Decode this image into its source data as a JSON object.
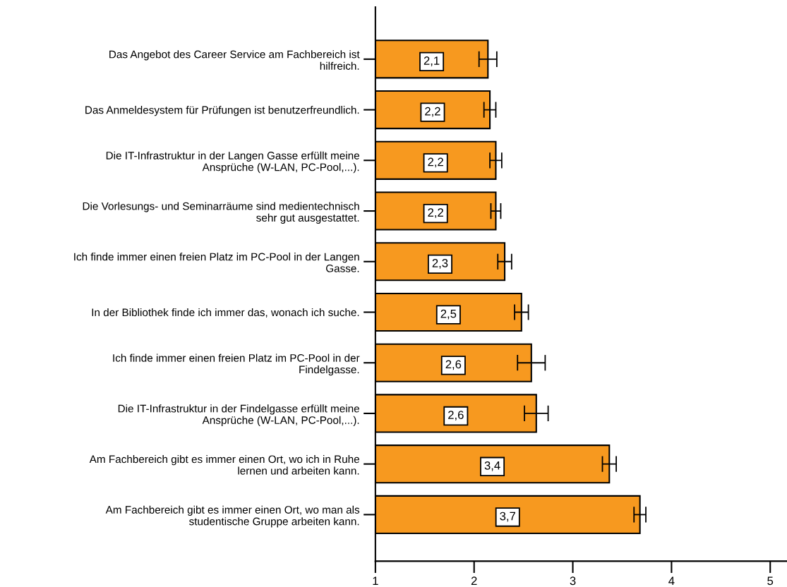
{
  "chart_data": {
    "type": "bar",
    "orientation": "horizontal",
    "categories": [
      "Das Angebot des Career Service am Fachbereich ist\nhilfreich.",
      "Das Anmeldesystem für Prüfungen ist benutzerfreundlich.",
      "Die IT-Infrastruktur in der Langen Gasse erfüllt meine\nAnsprüche (W-LAN, PC-Pool,...).",
      "Die Vorlesungs- und Seminarräume sind medientechnisch\nsehr gut ausgestattet.",
      "Ich finde immer einen freien Platz im PC-Pool in der Langen\nGasse.",
      "In der Bibliothek finde ich immer das, wonach ich suche.",
      "Ich finde immer einen freien Platz im PC-Pool in der\nFindelgasse.",
      "Die IT-Infrastruktur in der Findelgasse erfüllt meine\nAnsprüche (W-LAN, PC-Pool,...).",
      "Am Fachbereich gibt es immer einen Ort, wo ich in Ruhe\nlernen und arbeiten kann.",
      "Am Fachbereich gibt es immer einen Ort, wo man als\nstudentische Gruppe arbeiten kann."
    ],
    "values": [
      2.14,
      2.16,
      2.22,
      2.22,
      2.31,
      2.48,
      2.58,
      2.63,
      3.37,
      3.68
    ],
    "errors": [
      0.09,
      0.06,
      0.06,
      0.05,
      0.07,
      0.07,
      0.14,
      0.12,
      0.07,
      0.06
    ],
    "value_labels": [
      "2,1",
      "2,2",
      "2,2",
      "2,2",
      "2,3",
      "2,5",
      "2,6",
      "2,6",
      "3,4",
      "3,7"
    ],
    "color": "#f7991f",
    "xlim": [
      1,
      5.17
    ],
    "xticks": [
      1,
      2,
      3,
      4,
      5
    ],
    "grid": false,
    "legend": false
  }
}
